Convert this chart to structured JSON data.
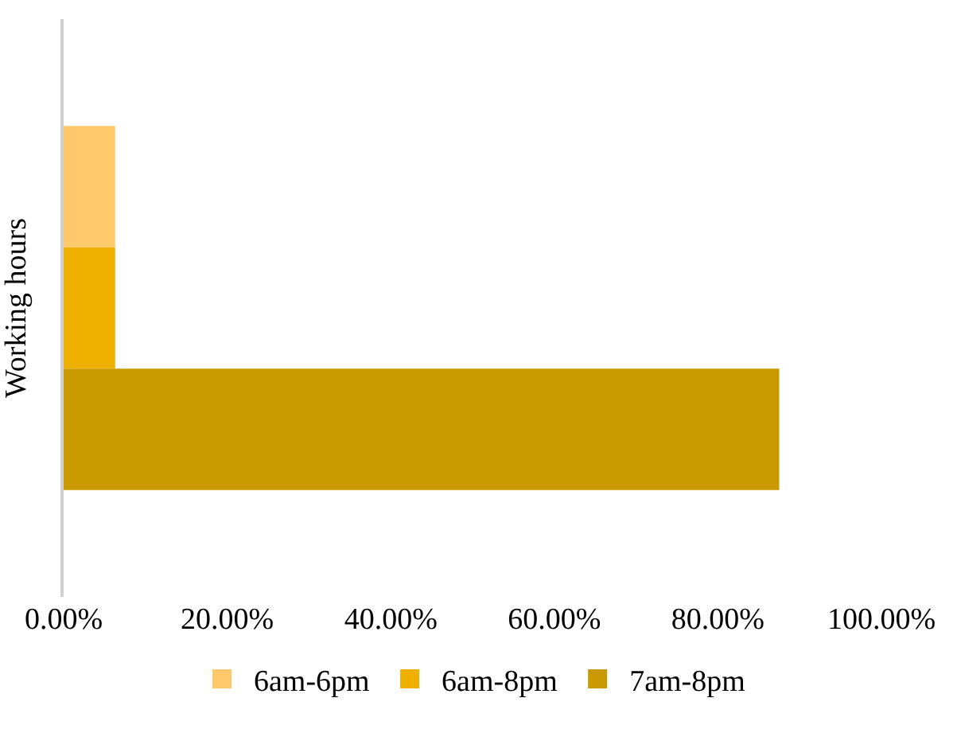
{
  "chart_data": {
    "type": "bar",
    "orientation": "horizontal",
    "ylabel": "Working hours",
    "categories": [
      null
    ],
    "series": [
      {
        "name": "6am-6pm",
        "color": "#ffc96b",
        "values": [
          6.3
        ]
      },
      {
        "name": "6am-8pm",
        "color": "#f0b000",
        "values": [
          6.3
        ]
      },
      {
        "name": "7am-8pm",
        "color": "#c89a00",
        "values": [
          87.5
        ]
      }
    ],
    "xlim": [
      0,
      100
    ],
    "xticks": [
      {
        "value": 0,
        "label": "0.00%"
      },
      {
        "value": 20,
        "label": "20.00%"
      },
      {
        "value": 40,
        "label": "40.00%"
      },
      {
        "value": 60,
        "label": "60.00%"
      },
      {
        "value": 80,
        "label": "80.00%"
      },
      {
        "value": 100,
        "label": "100.00%"
      }
    ],
    "grid": false,
    "legend": "bottom",
    "tick_labels": "x"
  }
}
